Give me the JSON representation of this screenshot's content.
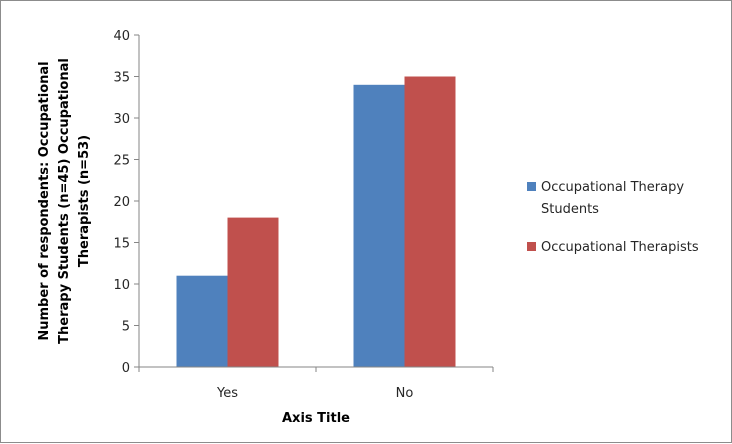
{
  "chart_data": {
    "type": "bar",
    "categories": [
      "Yes",
      "No"
    ],
    "series": [
      {
        "name": "Occupational Therapy Students",
        "values": [
          11,
          34
        ],
        "color": "#4F81BD"
      },
      {
        "name": "Occupational Therapists",
        "values": [
          18,
          35
        ],
        "color": "#C0504D"
      }
    ],
    "xlabel": "Axis Title",
    "ylabel_lines": [
      "Number of respondents: Occupational",
      "Therapy Students (n=45) Occupational",
      "Therapists (n=53)"
    ],
    "ylim": [
      0,
      40
    ],
    "yticks": [
      0,
      5,
      10,
      15,
      20,
      25,
      30,
      35,
      40
    ],
    "grid": false,
    "legend_position": "right"
  },
  "legend": {
    "items": [
      {
        "lines": [
          "Occupational Therapy",
          "Students"
        ],
        "color": "#4F81BD"
      },
      {
        "lines": [
          "Occupational Therapists"
        ],
        "color": "#C0504D"
      }
    ]
  }
}
